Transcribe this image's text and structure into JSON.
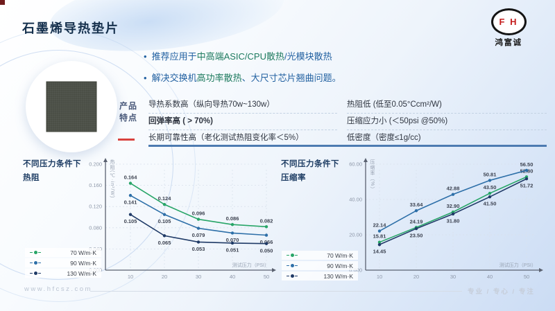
{
  "page": {
    "title": "石墨烯导热垫片",
    "logo": {
      "letters": "F H",
      "company": "鸿富诚"
    },
    "footer": {
      "website": "www.hfcsz.com",
      "slogan": "专业 / 专心 / 专注"
    }
  },
  "bullets": [
    {
      "prefix": "推荐应用于",
      "highlight": "中高端ASIC/CPU散热",
      "suffix": "/光模块散热"
    },
    {
      "prefix": "解决交换机",
      "highlight": "高功率散热",
      "suffix": "、大尺寸芯片翘曲问题。"
    }
  ],
  "features": {
    "label_line1": "产品",
    "label_line2": "特点",
    "left": [
      {
        "name": "导热系数高",
        "detail": "（纵向导热70w~130w）",
        "bold": false
      },
      {
        "name": "回弹率高",
        "detail": " ( > 70%)",
        "bold": true
      },
      {
        "name": "长期可靠性高",
        "detail": "（老化测试热阻变化率＜5%）",
        "bold": false
      }
    ],
    "right": [
      {
        "name": "热阻低",
        "detail": " (低至0.05°Ccm²/W)",
        "bold": false
      },
      {
        "name": "压缩应力小",
        "detail": " (＜50psi @50%)",
        "bold": false
      },
      {
        "name": "低密度",
        "detail": "（密度≤1g/cc)",
        "bold": false
      }
    ]
  },
  "chart_data": [
    {
      "type": "line",
      "title": "不同压力条件下热阻",
      "title_lines": [
        "不同压力条件下",
        "热阻"
      ],
      "xlabel": "测试压力（PSI）",
      "ylabel": "热阻(℃·in²/W)",
      "x": [
        10,
        20,
        30,
        40,
        50
      ],
      "ylim": [
        0,
        0.2
      ],
      "grid": true,
      "legend_position": "bottom-left",
      "decimals": 3,
      "y_ticks": [
        {
          "label": "0.200",
          "v": 0.2
        },
        {
          "label": "0.160",
          "v": 0.16
        },
        {
          "label": "0.120",
          "v": 0.12
        },
        {
          "label": "0.080",
          "v": 0.08
        },
        {
          "label": "0.040",
          "v": 0.04
        },
        {
          "label": "0.000",
          "v": 0.0
        }
      ],
      "series": [
        {
          "name": "70 W/m·K",
          "color": "#27a567",
          "label_pos": "above",
          "values": [
            0.164,
            0.124,
            0.096,
            0.086,
            0.082
          ]
        },
        {
          "name": "90 W/m·K",
          "color": "#2d6fa8",
          "label_pos": "below",
          "values": [
            0.141,
            0.105,
            0.079,
            0.07,
            0.066
          ]
        },
        {
          "name": "130 W/m·K",
          "color": "#1f3a66",
          "label_pos": "below",
          "values": [
            0.105,
            0.065,
            0.053,
            0.051,
            0.05
          ]
        }
      ]
    },
    {
      "type": "line",
      "title": "不同压力条件下压缩率",
      "title_lines": [
        "不同压力条件下",
        "压缩率"
      ],
      "xlabel": "测试压力（PSI）",
      "ylabel": "压缩率（%）",
      "x": [
        10,
        20,
        30,
        40,
        50
      ],
      "ylim": [
        0,
        60
      ],
      "grid": true,
      "legend_position": "bottom-left",
      "decimals": 2,
      "y_ticks": [
        {
          "label": "60.00",
          "v": 60
        },
        {
          "label": "40.00",
          "v": 40
        },
        {
          "label": "20.00",
          "v": 20
        },
        {
          "label": "0.000",
          "v": 0
        }
      ],
      "series": [
        {
          "name": "70 W/m·K",
          "color": "#27a567",
          "label_pos": "above",
          "values": [
            15.81,
            24.19,
            32.9,
            43.5,
            52.8
          ]
        },
        {
          "name": "90 W/m·K",
          "color": "#2d6fa8",
          "label_pos": "above",
          "values": [
            22.14,
            33.64,
            42.88,
            50.81,
            56.5
          ]
        },
        {
          "name": "130 W/m·K",
          "color": "#1f3a66",
          "label_pos": "below",
          "values": [
            14.45,
            23.5,
            31.8,
            41.5,
            51.72
          ]
        }
      ]
    }
  ]
}
